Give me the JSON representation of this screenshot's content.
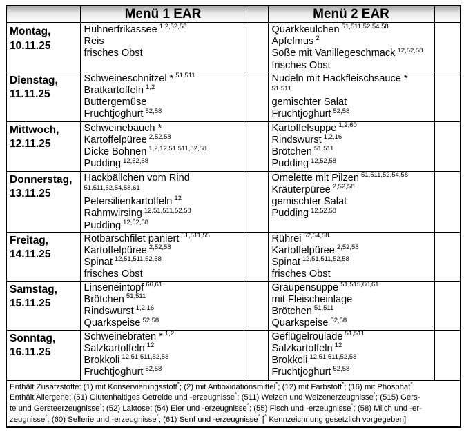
{
  "header": {
    "menu1": "Menü 1 EAR",
    "menu2": "Menü 2 EAR"
  },
  "rows": [
    {
      "day": "Montag,",
      "date": "10.11.25",
      "menu1": [
        {
          "t": "Hühnerfrikassee",
          "s": "1,2,52,58"
        },
        {
          "t": "Reis"
        },
        {
          "t": "frisches Obst"
        }
      ],
      "menu2": [
        {
          "t": "Quarkkeulchen",
          "s": "51,511,52,54,58"
        },
        {
          "t": "Apfelmus",
          "s": "2"
        },
        {
          "t": "Soße mit Vanillegeschmack",
          "s": "12,52,58"
        },
        {
          "t": "frisches Obst"
        }
      ]
    },
    {
      "day": "Dienstag,",
      "date": "11.11.25",
      "menu1": [
        {
          "t": "Schweineschnitzel *",
          "s": "51,511"
        },
        {
          "t": "Bratkartoffeln",
          "s": "1,2"
        },
        {
          "t": "Buttergemüse"
        },
        {
          "t": "Fruchtjoghurt",
          "s": "52,58"
        }
      ],
      "menu2": [
        {
          "t": "Nudeln mit Hackfleischsauce *",
          "s": "51,511",
          "w": true
        },
        {
          "t": "gemischter Salat"
        },
        {
          "t": "Fruchtjoghurt",
          "s": "52,58"
        }
      ]
    },
    {
      "day": "Mittwoch,",
      "date": "12.11.25",
      "menu1": [
        {
          "t": "Schweinebauch *"
        },
        {
          "t": "Kartoffelpüree",
          "s": "2,52,58"
        },
        {
          "t": "Dicke Bohnen",
          "s": "1,2,12,51,511,52,58"
        },
        {
          "t": "Pudding",
          "s": "12,52,58"
        }
      ],
      "menu2": [
        {
          "t": "Kartoffelsuppe",
          "s": "1,2,60"
        },
        {
          "t": "Rindswurst",
          "s": "1,2,16"
        },
        {
          "t": "Brötchen",
          "s": "51,511"
        },
        {
          "t": "Pudding",
          "s": "12,52,58"
        }
      ]
    },
    {
      "day": "Donnerstag,",
      "date": "13.11.25",
      "menu1": [
        {
          "t": "Hackbällchen vom Rind",
          "s": "51,511,52,54,58,61",
          "w": true
        },
        {
          "t": "Petersilienkartoffeln",
          "s": "12"
        },
        {
          "t": "Rahmwirsing",
          "s": "12,51,511,52,58"
        },
        {
          "t": "Pudding",
          "s": "12,52,58"
        }
      ],
      "menu2": [
        {
          "t": "Omelette mit Pilzen",
          "s": "51,511,52,54,58"
        },
        {
          "t": "Kräuterpüree",
          "s": "2,52,58"
        },
        {
          "t": "gemischter Salat"
        },
        {
          "t": "Pudding",
          "s": "12,52,58"
        }
      ]
    },
    {
      "day": "Freitag,",
      "date": "14.11.25",
      "menu1": [
        {
          "t": "Rotbarschfilet paniert",
          "s": "51,511,55"
        },
        {
          "t": "Kartoffelpüree",
          "s": "2,52,58"
        },
        {
          "t": "Spinat",
          "s": "12,51,511,52,58"
        },
        {
          "t": "frisches Obst"
        }
      ],
      "menu2": [
        {
          "t": "Rührei",
          "s": "52,54,58"
        },
        {
          "t": "Kartoffelpüree",
          "s": "2,52,58"
        },
        {
          "t": "Spinat",
          "s": "12,51,511,52,58"
        },
        {
          "t": "frisches Obst"
        }
      ]
    },
    {
      "day": "Samstag,",
      "date": "15.11.25",
      "menu1": [
        {
          "t": "Linseneintopf",
          "s": "60,61"
        },
        {
          "t": "Brötchen",
          "s": "51,511"
        },
        {
          "t": "Rindswurst",
          "s": "1,2,16"
        },
        {
          "t": "Quarkspeise",
          "s": "52,58"
        }
      ],
      "menu2": [
        {
          "t": "Graupensuppe",
          "s": "51,515,60,61"
        },
        {
          "t": "mit Fleischeinlage"
        },
        {
          "t": "Brötchen",
          "s": "51,511"
        },
        {
          "t": "Quarkspeise",
          "s": "52,58"
        }
      ]
    },
    {
      "day": "Sonntag,",
      "date": "16.11.25",
      "menu1": [
        {
          "t": "Schweinebraten *",
          "s": "1,2"
        },
        {
          "t": "Salzkartoffeln",
          "s": "12"
        },
        {
          "t": "Brokkoli",
          "s": "12,51,511,52,58"
        },
        {
          "t": "Fruchtjoghurt",
          "s": "52,58"
        }
      ],
      "menu2": [
        {
          "t": "Geflügelroulade",
          "s": "51,511"
        },
        {
          "t": "Salzkartoffeln",
          "s": "12"
        },
        {
          "t": "Brokkoli",
          "s": "12,51,511,52,58"
        },
        {
          "t": "Fruchtjoghurt",
          "s": "52,58"
        }
      ]
    }
  ],
  "footer_lines": [
    "Enthält Zusatzstoffe: (1) mit Konservierungsstoff*; (2) mit Antioxidationsmittel*; (12) mit Farbstoff*; (16) mit Phosphat*",
    "Enthält Allergene: (51) Glutenhaltiges Getreide und -erzeugnisse*; (511) Weizen und Weizenerzeugnisse*; (515) Gers-",
    "te und Gersteerzeugnisse*; (52) Laktose; (54) Eier und -erzeugnisse*; (55) Fisch und -erzeugnisse*; (58) Milch und -er-",
    "zeugnisse*; (60) Sellerie und -erzeugnisse*; (61) Senf und -erzeugnisse*   [* Kennzeichnung gesetzlich vorgegeben]"
  ],
  "colors": {
    "border": "#000000",
    "text": "#000000",
    "background": "#ffffff",
    "header_gradient_top": "#a9a9a9",
    "header_gradient_mid": "#e9e9e9",
    "header_gradient_bottom": "#fcfcfc"
  }
}
